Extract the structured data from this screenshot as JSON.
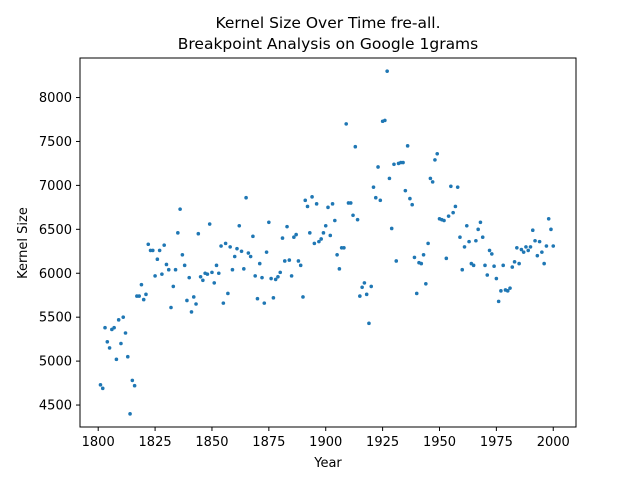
{
  "chart_data": {
    "type": "scatter",
    "title": "Kernel Size Over Time fre-all.",
    "subtitle": "Breakpoint Analysis on Google 1grams",
    "xlabel": "Year",
    "ylabel": "Kernel Size",
    "xlim": [
      1792,
      2010
    ],
    "ylim": [
      4250,
      8450
    ],
    "x_ticks": [
      1800,
      1825,
      1850,
      1875,
      1900,
      1925,
      1950,
      1975,
      2000
    ],
    "y_ticks": [
      4500,
      5000,
      5500,
      6000,
      6500,
      7000,
      7500,
      8000
    ],
    "grid": false,
    "legend": "none",
    "marker_color": "#1f77b4",
    "points": [
      [
        1801,
        4730
      ],
      [
        1802,
        4690
      ],
      [
        1803,
        5380
      ],
      [
        1804,
        5220
      ],
      [
        1805,
        5150
      ],
      [
        1806,
        5360
      ],
      [
        1807,
        5380
      ],
      [
        1808,
        5020
      ],
      [
        1809,
        5470
      ],
      [
        1810,
        5200
      ],
      [
        1811,
        5500
      ],
      [
        1812,
        5320
      ],
      [
        1813,
        5050
      ],
      [
        1814,
        4400
      ],
      [
        1815,
        4780
      ],
      [
        1816,
        4720
      ],
      [
        1817,
        5740
      ],
      [
        1818,
        5740
      ],
      [
        1819,
        5870
      ],
      [
        1820,
        5700
      ],
      [
        1821,
        5760
      ],
      [
        1822,
        6330
      ],
      [
        1823,
        6260
      ],
      [
        1824,
        6260
      ],
      [
        1825,
        5970
      ],
      [
        1826,
        6160
      ],
      [
        1827,
        6260
      ],
      [
        1828,
        5990
      ],
      [
        1829,
        6320
      ],
      [
        1830,
        6100
      ],
      [
        1831,
        6040
      ],
      [
        1832,
        5610
      ],
      [
        1833,
        5850
      ],
      [
        1834,
        6040
      ],
      [
        1835,
        6460
      ],
      [
        1836,
        6730
      ],
      [
        1837,
        6210
      ],
      [
        1838,
        6090
      ],
      [
        1839,
        5690
      ],
      [
        1840,
        5950
      ],
      [
        1841,
        5560
      ],
      [
        1842,
        5730
      ],
      [
        1843,
        5650
      ],
      [
        1844,
        6450
      ],
      [
        1845,
        5960
      ],
      [
        1846,
        5920
      ],
      [
        1847,
        6000
      ],
      [
        1848,
        5990
      ],
      [
        1849,
        6560
      ],
      [
        1850,
        6010
      ],
      [
        1851,
        5890
      ],
      [
        1852,
        6090
      ],
      [
        1853,
        6000
      ],
      [
        1854,
        6310
      ],
      [
        1855,
        5660
      ],
      [
        1856,
        6340
      ],
      [
        1857,
        5770
      ],
      [
        1858,
        6300
      ],
      [
        1859,
        6040
      ],
      [
        1860,
        6190
      ],
      [
        1861,
        6280
      ],
      [
        1862,
        6540
      ],
      [
        1863,
        6250
      ],
      [
        1864,
        6050
      ],
      [
        1865,
        6860
      ],
      [
        1866,
        6230
      ],
      [
        1867,
        6190
      ],
      [
        1868,
        6420
      ],
      [
        1869,
        5970
      ],
      [
        1870,
        5710
      ],
      [
        1871,
        6110
      ],
      [
        1872,
        5950
      ],
      [
        1873,
        5660
      ],
      [
        1874,
        6240
      ],
      [
        1875,
        6580
      ],
      [
        1876,
        5940
      ],
      [
        1877,
        5720
      ],
      [
        1878,
        5930
      ],
      [
        1879,
        5960
      ],
      [
        1880,
        6010
      ],
      [
        1881,
        6400
      ],
      [
        1882,
        6140
      ],
      [
        1883,
        6530
      ],
      [
        1884,
        6150
      ],
      [
        1885,
        5970
      ],
      [
        1886,
        6410
      ],
      [
        1887,
        6440
      ],
      [
        1888,
        6140
      ],
      [
        1889,
        6090
      ],
      [
        1890,
        5730
      ],
      [
        1891,
        6830
      ],
      [
        1892,
        6760
      ],
      [
        1893,
        6460
      ],
      [
        1894,
        6870
      ],
      [
        1895,
        6340
      ],
      [
        1896,
        6790
      ],
      [
        1897,
        6360
      ],
      [
        1898,
        6390
      ],
      [
        1899,
        6460
      ],
      [
        1900,
        6540
      ],
      [
        1901,
        6750
      ],
      [
        1902,
        6430
      ],
      [
        1903,
        6790
      ],
      [
        1904,
        6600
      ],
      [
        1905,
        6210
      ],
      [
        1906,
        6050
      ],
      [
        1907,
        6290
      ],
      [
        1908,
        6290
      ],
      [
        1909,
        7700
      ],
      [
        1910,
        6800
      ],
      [
        1911,
        6800
      ],
      [
        1912,
        6660
      ],
      [
        1913,
        7440
      ],
      [
        1914,
        6610
      ],
      [
        1915,
        5740
      ],
      [
        1916,
        5840
      ],
      [
        1917,
        5890
      ],
      [
        1918,
        5760
      ],
      [
        1919,
        5430
      ],
      [
        1920,
        5850
      ],
      [
        1921,
        6980
      ],
      [
        1922,
        6860
      ],
      [
        1923,
        7210
      ],
      [
        1924,
        6830
      ],
      [
        1925,
        7730
      ],
      [
        1926,
        7740
      ],
      [
        1927,
        8300
      ],
      [
        1928,
        7080
      ],
      [
        1929,
        6510
      ],
      [
        1930,
        7240
      ],
      [
        1931,
        6140
      ],
      [
        1932,
        7250
      ],
      [
        1933,
        7260
      ],
      [
        1934,
        7260
      ],
      [
        1935,
        6940
      ],
      [
        1936,
        7450
      ],
      [
        1937,
        6850
      ],
      [
        1938,
        6780
      ],
      [
        1939,
        6180
      ],
      [
        1940,
        5770
      ],
      [
        1941,
        6120
      ],
      [
        1942,
        6110
      ],
      [
        1943,
        6210
      ],
      [
        1944,
        5880
      ],
      [
        1945,
        6340
      ],
      [
        1946,
        7080
      ],
      [
        1947,
        7040
      ],
      [
        1948,
        7290
      ],
      [
        1949,
        7360
      ],
      [
        1950,
        6620
      ],
      [
        1951,
        6610
      ],
      [
        1952,
        6600
      ],
      [
        1953,
        6170
      ],
      [
        1954,
        6650
      ],
      [
        1955,
        6990
      ],
      [
        1956,
        6690
      ],
      [
        1957,
        6760
      ],
      [
        1958,
        6980
      ],
      [
        1959,
        6410
      ],
      [
        1960,
        6040
      ],
      [
        1961,
        6300
      ],
      [
        1962,
        6540
      ],
      [
        1963,
        6360
      ],
      [
        1964,
        6110
      ],
      [
        1965,
        6090
      ],
      [
        1966,
        6370
      ],
      [
        1967,
        6500
      ],
      [
        1968,
        6580
      ],
      [
        1969,
        6410
      ],
      [
        1970,
        6090
      ],
      [
        1971,
        5980
      ],
      [
        1972,
        6260
      ],
      [
        1973,
        6220
      ],
      [
        1974,
        6080
      ],
      [
        1975,
        5940
      ],
      [
        1976,
        5680
      ],
      [
        1977,
        5800
      ],
      [
        1978,
        6090
      ],
      [
        1979,
        5810
      ],
      [
        1980,
        5800
      ],
      [
        1981,
        5830
      ],
      [
        1982,
        6070
      ],
      [
        1983,
        6130
      ],
      [
        1984,
        6290
      ],
      [
        1985,
        6110
      ],
      [
        1986,
        6270
      ],
      [
        1987,
        6240
      ],
      [
        1988,
        6300
      ],
      [
        1989,
        6260
      ],
      [
        1990,
        6300
      ],
      [
        1991,
        6490
      ],
      [
        1992,
        6370
      ],
      [
        1993,
        6200
      ],
      [
        1994,
        6360
      ],
      [
        1995,
        6240
      ],
      [
        1996,
        6110
      ],
      [
        1997,
        6310
      ],
      [
        1998,
        6620
      ],
      [
        1999,
        6500
      ],
      [
        2000,
        6310
      ]
    ]
  }
}
